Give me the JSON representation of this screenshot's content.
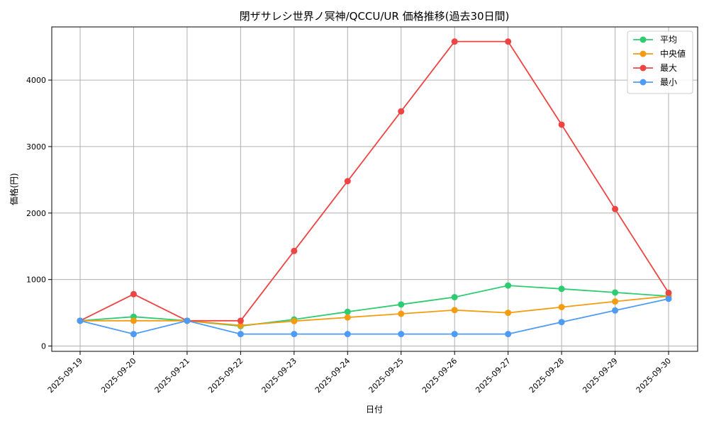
{
  "chart_data": {
    "type": "line",
    "title": "閉ザサレシ世界ノ冥神/QCCU/UR 価格推移(過去30日間)",
    "xlabel": "日付",
    "ylabel": "価格(円)",
    "categories": [
      "2025-09-19",
      "2025-09-20",
      "2025-09-21",
      "2025-09-22",
      "2025-09-23",
      "2025-09-24",
      "2025-09-25",
      "2025-09-26",
      "2025-09-27",
      "2025-09-28",
      "2025-09-29",
      "2025-09-30"
    ],
    "ylim": [
      -80,
      4800
    ],
    "yticks": [
      0,
      1000,
      2000,
      3000,
      4000
    ],
    "grid": true,
    "legend_position": "top-right",
    "series": [
      {
        "name": "平均",
        "color": "#2ecc71",
        "values": [
          380,
          440,
          380,
          300,
          400,
          515,
          625,
          735,
          910,
          860,
          805,
          750
        ]
      },
      {
        "name": "中央値",
        "color": "#f39c12",
        "values": [
          380,
          380,
          380,
          310,
          375,
          430,
          485,
          540,
          500,
          585,
          670,
          750
        ]
      },
      {
        "name": "最大",
        "color": "#ef4444",
        "values": [
          380,
          780,
          380,
          380,
          1430,
          2480,
          3530,
          4580,
          4580,
          3330,
          2060,
          800
        ]
      },
      {
        "name": "最小",
        "color": "#4e9bf5",
        "values": [
          380,
          180,
          380,
          180,
          180,
          180,
          180,
          180,
          180,
          360,
          535,
          710
        ]
      }
    ]
  }
}
